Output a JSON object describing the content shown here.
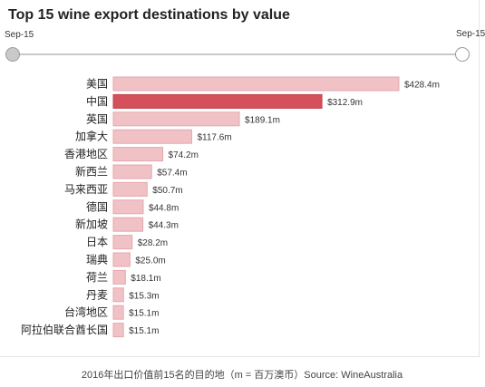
{
  "chart_data": {
    "type": "bar",
    "orientation": "horizontal",
    "title": "Top 15 wine export destinations by value",
    "slider": {
      "start_label": "Sep-15",
      "end_label": "Sep-15"
    },
    "categories": [
      "美国",
      "中国",
      "英国",
      "加拿大",
      "香港地区",
      "新西兰",
      "马来西亚",
      "德国",
      "新加坡",
      "日本",
      "瑞典",
      "荷兰",
      "丹麦",
      "台湾地区",
      "阿拉伯联合酋长国"
    ],
    "values": [
      428.4,
      312.9,
      189.1,
      117.6,
      74.2,
      57.4,
      50.7,
      44.8,
      44.3,
      28.2,
      25.0,
      18.1,
      15.3,
      15.1,
      15.1
    ],
    "labels": [
      "$428.4m",
      "$312.9m",
      "$189.1m",
      "$117.6m",
      "$74.2m",
      "$57.4m",
      "$50.7m",
      "$44.8m",
      "$44.3m",
      "$28.2m",
      "$25.0m",
      "$18.1m",
      "$15.3m",
      "$15.1m",
      "$15.1m"
    ],
    "highlight_index": 1,
    "xlim": [
      0,
      428.4
    ],
    "grid": false,
    "colors": {
      "bar": "#f0c2c6",
      "bar_border": "#e3a7ad",
      "highlight": "#d4505a",
      "highlight_border": "#c23e48"
    }
  },
  "caption": "2016年出口价值前15名的目的地（m = 百万澳币）Source: WineAustralia"
}
